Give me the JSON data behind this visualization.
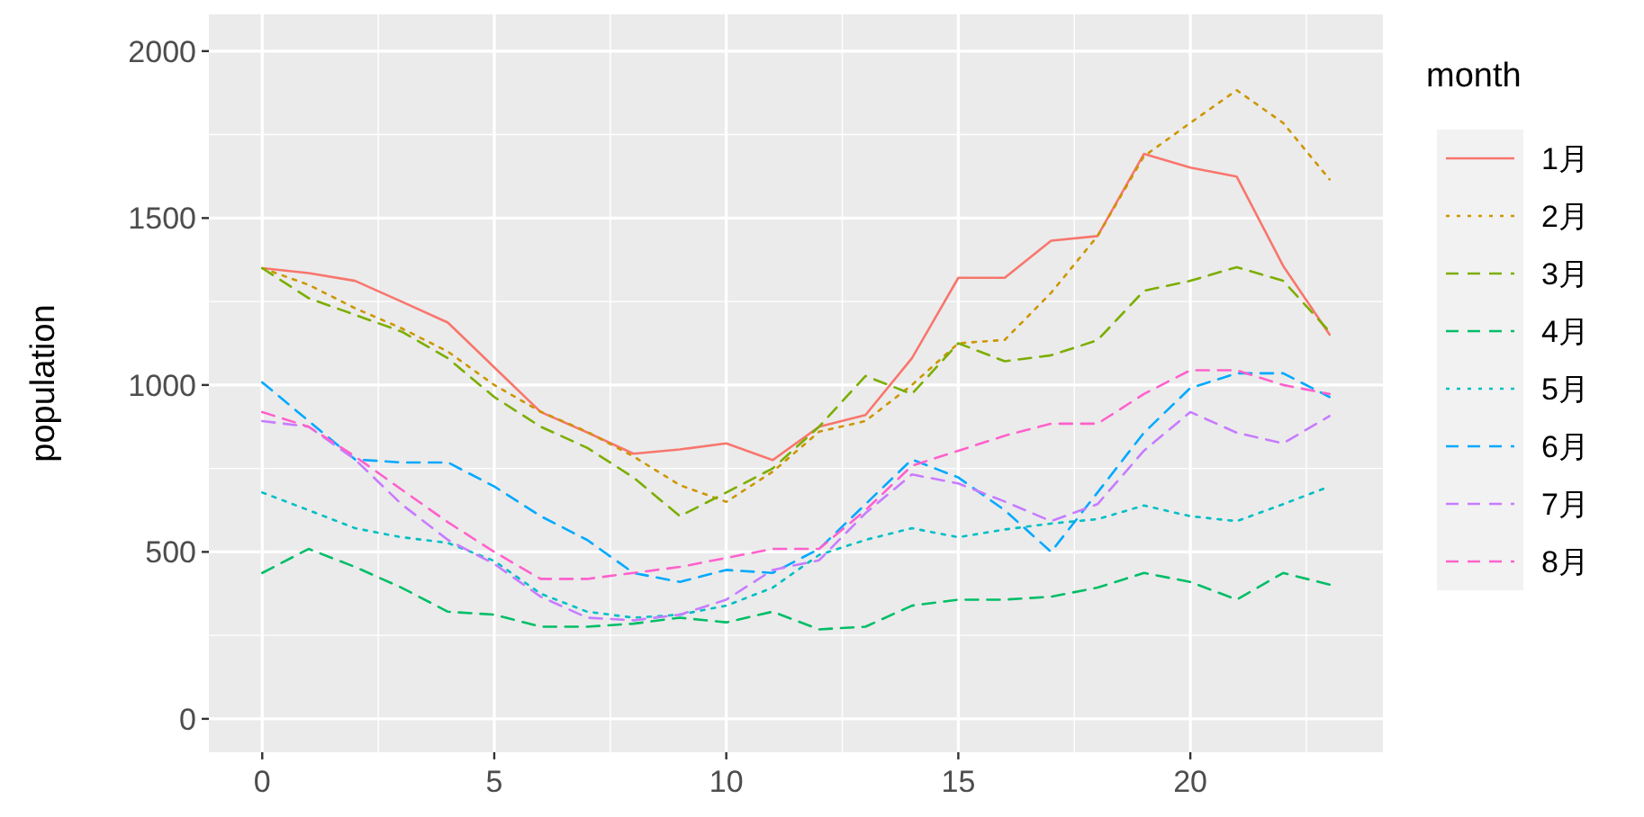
{
  "chart_data": {
    "type": "line",
    "xlabel": null,
    "ylabel": "population",
    "legend_title": "month",
    "legend": "right",
    "grid": true,
    "xlim": [
      -1.15,
      24.15
    ],
    "ylim": [
      -100,
      2110
    ],
    "xticks": [
      0,
      5,
      10,
      15,
      20
    ],
    "yticks": [
      0,
      500,
      1000,
      1500,
      2000
    ],
    "x": [
      0,
      1,
      2,
      3,
      4,
      5,
      6,
      7,
      8,
      9,
      10,
      11,
      12,
      13,
      14,
      15,
      16,
      17,
      18,
      19,
      20,
      21,
      22,
      23
    ],
    "series": [
      {
        "name": "1月",
        "color": "#f8766d",
        "line_style": "solid",
        "values": [
          1350,
          1335,
          1312,
          1250,
          1187,
          1053,
          919,
          858,
          794,
          807,
          825,
          775,
          875,
          910,
          1080,
          1321,
          1321,
          1432,
          1446,
          1692,
          1651,
          1624,
          1357,
          1151
        ]
      },
      {
        "name": "2月",
        "color": "#cd9600",
        "line_style": "dotted",
        "values": [
          1350,
          1300,
          1230,
          1170,
          1100,
          1000,
          920,
          860,
          786,
          700,
          650,
          740,
          860,
          892,
          1000,
          1125,
          1135,
          1276,
          1446,
          1685,
          1785,
          1883,
          1785,
          1616
        ]
      },
      {
        "name": "3月",
        "color": "#7cae00",
        "line_style": "dashed",
        "values": [
          1350,
          1260,
          1210,
          1160,
          1080,
          964,
          875,
          812,
          723,
          607,
          678,
          750,
          875,
          1027,
          973,
          1125,
          1071,
          1089,
          1134,
          1282,
          1312,
          1353,
          1312,
          1160
        ]
      },
      {
        "name": "4月",
        "color": "#00be67",
        "line_style": "dashed",
        "values": [
          437,
          509,
          455,
          393,
          321,
          312,
          276,
          276,
          285,
          303,
          289,
          321,
          268,
          276,
          339,
          357,
          357,
          366,
          393,
          437,
          410,
          357,
          437,
          402
        ]
      },
      {
        "name": "5月",
        "color": "#00bfc4",
        "line_style": "dotted",
        "values": [
          678,
          625,
          571,
          544,
          527,
          473,
          375,
          321,
          303,
          312,
          339,
          393,
          491,
          536,
          571,
          544,
          567,
          585,
          598,
          639,
          607,
          592,
          643,
          696
        ]
      },
      {
        "name": "6月",
        "color": "#00a9ff",
        "line_style": "dashed",
        "values": [
          1008,
          892,
          777,
          768,
          768,
          696,
          607,
          536,
          437,
          410,
          446,
          437,
          509,
          643,
          777,
          723,
          625,
          500,
          678,
          857,
          991,
          1035,
          1035,
          964
        ]
      },
      {
        "name": "7月",
        "color": "#c77cff",
        "line_style": "dashed",
        "values": [
          892,
          875,
          777,
          643,
          536,
          464,
          366,
          303,
          295,
          312,
          357,
          446,
          475,
          616,
          732,
          705,
          651,
          592,
          643,
          803,
          919,
          857,
          825,
          907
        ]
      },
      {
        "name": "8月",
        "color": "#ff61cc",
        "line_style": "dashed",
        "values": [
          919,
          875,
          786,
          687,
          589,
          500,
          419,
          419,
          437,
          455,
          482,
          509,
          509,
          625,
          758,
          803,
          848,
          884,
          884,
          973,
          1044,
          1044,
          1000,
          973
        ]
      }
    ]
  }
}
